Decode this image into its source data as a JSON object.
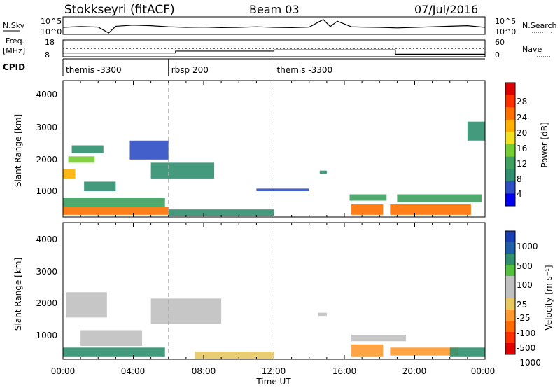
{
  "header": {
    "title": "Stokkseyri (fitACF)",
    "beam": "Beam 03",
    "date": "07/Jul/2016"
  },
  "noise_panel": {
    "left_label": "N.Sky",
    "left_ticks": [
      "10^5",
      "10^0"
    ],
    "right_label": "N.Search",
    "right_ticks": [
      "10^5",
      "10^0"
    ]
  },
  "freq_panel": {
    "left_label_line1": "Freq.",
    "left_label_line2": "[MHz]",
    "left_ticks": [
      "18",
      "8"
    ],
    "right_label": "Nave",
    "right_ticks": [
      "60",
      "0"
    ]
  },
  "cpid_panel": {
    "label": "CPID",
    "segments": [
      {
        "hour": 0.0,
        "text": "themis -3300"
      },
      {
        "hour": 6.0,
        "text": "rbsp 200"
      },
      {
        "hour": 12.0,
        "text": "themis -3300"
      }
    ]
  },
  "power_panel": {
    "ylabel": "Slant Range [km]",
    "yticks": [
      "4000",
      "3000",
      "2000",
      "1000"
    ],
    "colorbar_label": "Power [dB]",
    "colorbar_ticks": [
      "28",
      "24",
      "20",
      "16",
      "12",
      "8",
      "4"
    ],
    "colors": [
      "#0000ee",
      "#2f4fc4",
      "#2f8f6f",
      "#3fa060",
      "#77cc33",
      "#f0e020",
      "#ffb000",
      "#ff7000",
      "#ff3000",
      "#dd0000"
    ]
  },
  "velocity_panel": {
    "ylabel": "Slant Range [km]",
    "yticks": [
      "4000",
      "3000",
      "2000",
      "1000"
    ],
    "colorbar_label": "Velocity [m s⁻¹]",
    "colorbar_ticks": [
      "1000",
      "500",
      "100",
      "25",
      "-25",
      "-100",
      "-500",
      "-1000"
    ],
    "colors": [
      "#1a3fb5",
      "#1f5ea8",
      "#2f8f6f",
      "#55c040",
      "#c0c0c0",
      "#c0c0c0",
      "#e8c860",
      "#ff9a30",
      "#ff6a00",
      "#ff3000",
      "#e00000"
    ]
  },
  "x_axis": {
    "xlabel": "Time UT",
    "ticks": [
      "00:00",
      "04:00",
      "08:00",
      "12:00",
      "16:00",
      "20:00",
      "00:00"
    ]
  },
  "chart_data": {
    "type": "heatmap",
    "title": "Stokkseyri (fitACF)",
    "xlabel": "Time UT",
    "ylabel": "Slant Range [km]",
    "xlim": [
      0,
      24
    ],
    "ylim": [
      180,
      4500
    ],
    "noise_sky_log": {
      "x": [
        0,
        1,
        2,
        2.6,
        3,
        4,
        5,
        6,
        7,
        8,
        9,
        10,
        11,
        12,
        13,
        14,
        14.8,
        15.2,
        15.6,
        16.4,
        17,
        18,
        19,
        20,
        21,
        22,
        23,
        24
      ],
      "y": [
        2.0,
        2.3,
        2.1,
        0.0,
        2.4,
        2.8,
        2.6,
        2.2,
        2.0,
        2.1,
        1.9,
        2.0,
        2.2,
        2.0,
        1.9,
        2.1,
        4.8,
        2.3,
        4.2,
        2.2,
        2.1,
        2.0,
        1.8,
        2.0,
        2.2,
        2.4,
        2.6,
        2.0
      ]
    },
    "freq_mhz": {
      "x": [
        0,
        6.4,
        6.4,
        12.0,
        12.0,
        18.9,
        18.9,
        24
      ],
      "y": [
        10.0,
        10.0,
        11.2,
        11.2,
        12.0,
        12.0,
        9.2,
        9.2
      ]
    },
    "nave": {
      "x": [
        0,
        24
      ],
      "y": [
        30,
        30
      ]
    },
    "power_db": [
      {
        "t0": 0.0,
        "t1": 0.7,
        "r0": 1400,
        "r1": 1700,
        "v": 20
      },
      {
        "t0": 0.3,
        "t1": 1.8,
        "r0": 1900,
        "r1": 2100,
        "v": 16
      },
      {
        "t0": 0.5,
        "t1": 2.3,
        "r0": 2200,
        "r1": 2450,
        "v": 8
      },
      {
        "t0": 0.0,
        "t1": 6.0,
        "r0": 250,
        "r1": 500,
        "v": 24
      },
      {
        "t0": 0.0,
        "t1": 5.8,
        "r0": 500,
        "r1": 800,
        "v": 12
      },
      {
        "t0": 1.2,
        "t1": 3.0,
        "r0": 1000,
        "r1": 1300,
        "v": 8
      },
      {
        "t0": 5.0,
        "t1": 8.6,
        "r0": 1400,
        "r1": 1900,
        "v": 8
      },
      {
        "t0": 3.8,
        "t1": 6.0,
        "r0": 2000,
        "r1": 2600,
        "v": 6
      },
      {
        "t0": 6.0,
        "t1": 12.0,
        "r0": 220,
        "r1": 420,
        "v": 8
      },
      {
        "t0": 16.4,
        "t1": 18.2,
        "r0": 250,
        "r1": 600,
        "v": 24
      },
      {
        "t0": 16.3,
        "t1": 18.4,
        "r0": 700,
        "r1": 900,
        "v": 12
      },
      {
        "t0": 18.6,
        "t1": 23.2,
        "r0": 250,
        "r1": 600,
        "v": 24
      },
      {
        "t0": 19.0,
        "t1": 23.8,
        "r0": 650,
        "r1": 900,
        "v": 12
      },
      {
        "t0": 14.6,
        "t1": 15.0,
        "r0": 1550,
        "r1": 1650,
        "v": 8
      },
      {
        "t0": 11.0,
        "t1": 14.0,
        "r0": 1000,
        "r1": 1080,
        "v": 6
      },
      {
        "t0": 23.0,
        "t1": 24.0,
        "r0": 2600,
        "r1": 3200,
        "v": 8
      }
    ],
    "velocity_ms": [
      {
        "t0": 0.0,
        "t1": 5.8,
        "r0": 250,
        "r1": 550,
        "v": 200
      },
      {
        "t0": 0.2,
        "t1": 2.5,
        "r0": 1500,
        "r1": 2300,
        "v": 0
      },
      {
        "t0": 5.0,
        "t1": 9.0,
        "r0": 1300,
        "r1": 2100,
        "v": 0
      },
      {
        "t0": 1.0,
        "t1": 4.5,
        "r0": 600,
        "r1": 1100,
        "v": 0
      },
      {
        "t0": 7.5,
        "t1": 12.0,
        "r0": 200,
        "r1": 420,
        "v": -80
      },
      {
        "t0": 16.4,
        "t1": 18.2,
        "r0": 250,
        "r1": 650,
        "v": -300
      },
      {
        "t0": 18.6,
        "t1": 22.5,
        "r0": 300,
        "r1": 550,
        "v": -300
      },
      {
        "t0": 16.4,
        "t1": 19.5,
        "r0": 750,
        "r1": 950,
        "v": 0
      },
      {
        "t0": 22.0,
        "t1": 24.0,
        "r0": 250,
        "r1": 550,
        "v": 200
      },
      {
        "t0": 14.5,
        "t1": 15.0,
        "r0": 1550,
        "r1": 1650,
        "v": 0
      }
    ]
  }
}
